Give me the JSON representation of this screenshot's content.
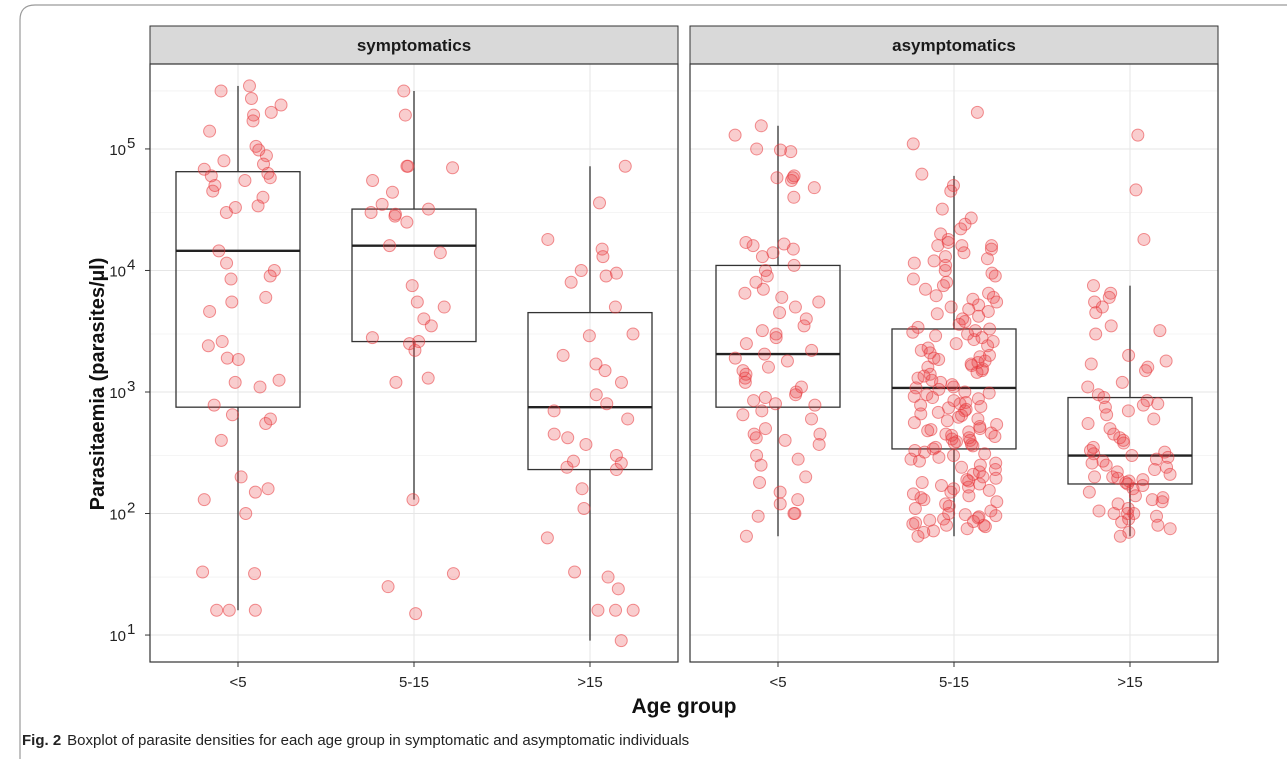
{
  "caption": {
    "label": "Fig. 2",
    "text": "Boxplot of parasite densities for each age group in symptomatic and asymptomatic individuals"
  },
  "chart_data": {
    "type": "box",
    "title": "",
    "xlabel": "Age group",
    "ylabel": "Parasitaemia (parasites/µl)",
    "y_scale": "log10",
    "ylim": [
      6,
      500000
    ],
    "y_ticks": [
      {
        "exp": 1,
        "label": "10",
        "sup": "1"
      },
      {
        "exp": 2,
        "label": "10",
        "sup": "2"
      },
      {
        "exp": 3,
        "label": "10",
        "sup": "3"
      },
      {
        "exp": 4,
        "label": "10",
        "sup": "4"
      },
      {
        "exp": 5,
        "label": "10",
        "sup": "5"
      }
    ],
    "categories": [
      "<5",
      "5-15",
      ">15"
    ],
    "grid": true,
    "point_color": "#e8383d",
    "panels": [
      {
        "name": "symptomatics",
        "boxes": [
          {
            "category": "<5",
            "whisker_low": 16,
            "q1": 750,
            "median": 14500,
            "q3": 65000,
            "whisker_high": 330000,
            "points": [
              260000,
              300000,
              330000,
              230000,
              190000,
              170000,
              140000,
              200000,
              105000,
              88000,
              98000,
              80000,
              75000,
              60000,
              55000,
              50000,
              45000,
              40000,
              58000,
              63000,
              68000,
              33000,
              34000,
              30000,
              14500,
              11500,
              10000,
              9000,
              8500,
              5500,
              6000,
              4600,
              2400,
              2600,
              1900,
              1850,
              1250,
              1200,
              1100,
              780,
              650,
              600,
              550,
              400,
              200,
              160,
              150,
              130,
              100,
              33,
              32,
              16,
              16,
              16
            ]
          },
          {
            "category": "5-15",
            "whisker_low": 130,
            "q1": 2600,
            "median": 16000,
            "q3": 32000,
            "whisker_high": 300000,
            "points": [
              300000,
              190000,
              72000,
              70000,
              72000,
              55000,
              44000,
              35000,
              32000,
              30000,
              29000,
              28000,
              25000,
              16000,
              14000,
              7500,
              5500,
              5000,
              4000,
              3500,
              2800,
              2600,
              2500,
              2200,
              1300,
              1200,
              130,
              32,
              25,
              15
            ]
          },
          {
            "category": ">15",
            "whisker_low": 9,
            "q1": 230,
            "median": 750,
            "q3": 4500,
            "whisker_high": 72000,
            "points": [
              72000,
              36000,
              18000,
              15000,
              13000,
              10000,
              9500,
              9000,
              8000,
              5000,
              3000,
              2900,
              2000,
              1700,
              1500,
              1200,
              950,
              800,
              700,
              600,
              450,
              420,
              370,
              300,
              270,
              260,
              240,
              230,
              160,
              110,
              63,
              33,
              30,
              24,
              16,
              16,
              16,
              9
            ]
          }
        ]
      },
      {
        "name": "asymptomatics",
        "boxes": [
          {
            "category": "<5",
            "whisker_low": 65,
            "q1": 750,
            "median": 2050,
            "q3": 11000,
            "whisker_high": 155000,
            "points": [
              155000,
              130000,
              100000,
              98000,
              95000,
              60000,
              58000,
              58000,
              55000,
              48000,
              40000,
              17000,
              16500,
              16000,
              15000,
              14000,
              13000,
              11000,
              10000,
              9000,
              8000,
              7000,
              6500,
              6000,
              5500,
              5000,
              4500,
              4000,
              3500,
              3200,
              3000,
              2800,
              2500,
              2200,
              2050,
              1900,
              1800,
              1600,
              1500,
              1400,
              1300,
              1200,
              1100,
              1000,
              950,
              900,
              850,
              800,
              780,
              700,
              650,
              600,
              500,
              450,
              450,
              420,
              400,
              370,
              300,
              280,
              250,
              200,
              180,
              150,
              130,
              120,
              100,
              100,
              95,
              65
            ]
          },
          {
            "category": "5-15",
            "whisker_low": 65,
            "q1": 340,
            "median": 1080,
            "q3": 3300,
            "whisker_high": 60000,
            "points": [
              200000,
              110000,
              62000,
              50000,
              45000,
              32000,
              27000,
              24000,
              22000,
              20000,
              18000,
              17000,
              16000,
              16000,
              16000,
              15000,
              14000,
              13000,
              12500,
              12000,
              11500,
              11000,
              10000,
              9500,
              9000,
              8500,
              8000,
              7500,
              7000,
              6500,
              6200,
              6000,
              5800,
              5500,
              5200,
              5000,
              4800,
              4600,
              4400,
              4200,
              4000,
              3800,
              3600,
              3400,
              3300,
              3200,
              3100,
              3000,
              2900,
              2800,
              2700,
              2600,
              2500,
              2400,
              2300,
              2200,
              2100,
              2000,
              1950,
              1900,
              1850,
              1800,
              1750,
              1700,
              1650,
              1600,
              1550,
              1500,
              1450,
              1400,
              1350,
              1300,
              1250,
              1200,
              1150,
              1100,
              1080,
              1050,
              1000,
              980,
              950,
              920,
              900,
              880,
              850,
              820,
              800,
              780,
              760,
              740,
              720,
              700,
              680,
              660,
              640,
              620,
              600,
              580,
              560,
              540,
              520,
              500,
              490,
              480,
              470,
              460,
              450,
              440,
              430,
              420,
              410,
              400,
              390,
              380,
              370,
              360,
              350,
              340,
              330,
              320,
              310,
              300,
              290,
              280,
              270,
              260,
              250,
              240,
              230,
              220,
              210,
              200,
              195,
              190,
              185,
              180,
              175,
              170,
              165,
              160,
              155,
              150,
              145,
              140,
              135,
              130,
              125,
              120,
              115,
              110,
              105,
              100,
              98,
              96,
              94,
              92,
              90,
              88,
              86,
              84,
              82,
              80,
              80,
              78,
              75,
              72,
              70,
              65
            ]
          },
          {
            "category": ">15",
            "whisker_low": 65,
            "q1": 175,
            "median": 300,
            "q3": 900,
            "whisker_high": 7500,
            "points": [
              130000,
              46000,
              18000,
              7500,
              6500,
              6000,
              5500,
              5000,
              4500,
              3500,
              3200,
              3000,
              2000,
              1800,
              1700,
              1600,
              1500,
              1200,
              1100,
              950,
              900,
              850,
              800,
              780,
              750,
              700,
              650,
              600,
              550,
              500,
              450,
              420,
              400,
              380,
              350,
              330,
              320,
              310,
              300,
              290,
              280,
              270,
              260,
              250,
              240,
              230,
              220,
              210,
              200,
              200,
              195,
              190,
              185,
              180,
              175,
              170,
              160,
              150,
              140,
              135,
              130,
              125,
              120,
              110,
              105,
              100,
              100,
              100,
              95,
              90,
              85,
              80,
              75,
              70,
              65
            ]
          }
        ]
      }
    ]
  }
}
